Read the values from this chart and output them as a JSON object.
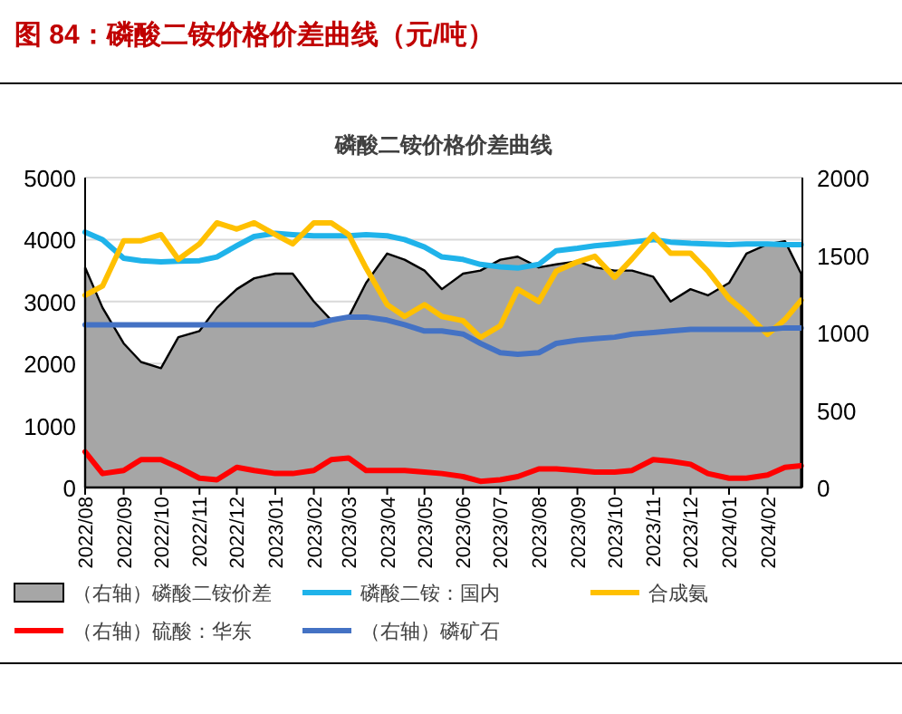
{
  "chart_data": {
    "type": "line",
    "title": "图 84：磷酸二铵价格价差曲线（元/吨）",
    "subtitle": "磷酸二铵价格价差曲线",
    "x": [
      "2022-08-01",
      "2022-08-15",
      "2022-09-01",
      "2022-09-15",
      "2022-10-01",
      "2022-10-15",
      "2022-11-01",
      "2022-11-15",
      "2022-12-01",
      "2022-12-15",
      "2023-01-01",
      "2023-01-15",
      "2023-02-01",
      "2023-02-15",
      "2023-03-01",
      "2023-03-15",
      "2023-04-01",
      "2023-04-15",
      "2023-05-01",
      "2023-05-15",
      "2023-06-01",
      "2023-06-15",
      "2023-07-01",
      "2023-07-15",
      "2023-08-01",
      "2023-08-15",
      "2023-09-01",
      "2023-09-15",
      "2023-10-01",
      "2023-10-15",
      "2023-11-01",
      "2023-11-15",
      "2023-12-01",
      "2023-12-15",
      "2024-01-01",
      "2024-01-15",
      "2024-02-01",
      "2024-02-15",
      "2024-02-28"
    ],
    "series": [
      {
        "name": "（右轴）磷酸二铵价差",
        "type": "area",
        "axis": "y2",
        "color": "#a6a6a6",
        "values": [
          1420,
          1160,
          930,
          810,
          770,
          970,
          1010,
          1160,
          1280,
          1350,
          1380,
          1380,
          1200,
          1080,
          1100,
          1320,
          1510,
          1470,
          1400,
          1280,
          1380,
          1400,
          1470,
          1490,
          1420,
          1440,
          1460,
          1420,
          1400,
          1400,
          1360,
          1200,
          1280,
          1240,
          1320,
          1510,
          1570,
          1590,
          1380
        ]
      },
      {
        "name": "磷酸二铵：国内",
        "color": "#1fb3ea",
        "values": [
          4120,
          4000,
          3700,
          3660,
          3640,
          3650,
          3660,
          3720,
          3900,
          4050,
          4100,
          4080,
          4060,
          4060,
          4060,
          4080,
          4060,
          4000,
          3880,
          3720,
          3680,
          3600,
          3560,
          3540,
          3600,
          3820,
          3860,
          3900,
          3930,
          3960,
          4000,
          3960,
          3940,
          3930,
          3920,
          3930,
          3930,
          3920,
          3920
        ]
      },
      {
        "name": "合成氨",
        "color": "#ffc000",
        "values": [
          3100,
          3250,
          3980,
          3980,
          4080,
          3680,
          3930,
          4270,
          4170,
          4270,
          4080,
          3930,
          4270,
          4270,
          4080,
          3540,
          2950,
          2760,
          2950,
          2760,
          2690,
          2420,
          2610,
          3200,
          3000,
          3490,
          3640,
          3730,
          3390,
          3690,
          4080,
          3780,
          3780,
          3490,
          3050,
          2810,
          2470,
          2710,
          3020
        ]
      },
      {
        "name": "（右轴）硫酸：华东",
        "axis": "y2",
        "color": "#ff0000",
        "values": [
          230,
          90,
          110,
          180,
          180,
          130,
          60,
          50,
          130,
          110,
          90,
          90,
          110,
          180,
          190,
          110,
          110,
          110,
          100,
          90,
          70,
          40,
          50,
          70,
          120,
          120,
          110,
          100,
          100,
          110,
          180,
          170,
          150,
          90,
          60,
          60,
          80,
          130,
          140
        ]
      },
      {
        "name": "（右轴）磷矿石",
        "axis": "y2",
        "color": "#4472c4",
        "values": [
          1050,
          1050,
          1050,
          1050,
          1050,
          1050,
          1050,
          1050,
          1050,
          1050,
          1050,
          1050,
          1050,
          1080,
          1100,
          1100,
          1080,
          1050,
          1010,
          1010,
          990,
          930,
          870,
          860,
          870,
          930,
          950,
          960,
          970,
          990,
          1000,
          1010,
          1020,
          1020,
          1020,
          1020,
          1020,
          1030,
          1030
        ]
      }
    ],
    "xlim": [
      "2022-08-01",
      "2024-02-29"
    ],
    "xticks": [
      {
        "value": "2022-08-01",
        "label": "2022/08"
      },
      {
        "value": "2022-09-01",
        "label": "2022/09"
      },
      {
        "value": "2022-10-01",
        "label": "2022/10"
      },
      {
        "value": "2022-11-01",
        "label": "2022/11"
      },
      {
        "value": "2022-12-01",
        "label": "2022/12"
      },
      {
        "value": "2023-01-01",
        "label": "2023/01"
      },
      {
        "value": "2023-02-01",
        "label": "2023/02"
      },
      {
        "value": "2023-03-01",
        "label": "2023/03"
      },
      {
        "value": "2023-04-01",
        "label": "2023/04"
      },
      {
        "value": "2023-05-01",
        "label": "2023/05"
      },
      {
        "value": "2023-06-01",
        "label": "2023/06"
      },
      {
        "value": "2023-07-01",
        "label": "2023/07"
      },
      {
        "value": "2023-08-01",
        "label": "2023/08"
      },
      {
        "value": "2023-09-01",
        "label": "2023/09"
      },
      {
        "value": "2023-10-01",
        "label": "2023/10"
      },
      {
        "value": "2023-11-01",
        "label": "2023/11"
      },
      {
        "value": "2023-12-01",
        "label": "2023/12"
      },
      {
        "value": "2024-01-01",
        "label": "2024/01"
      },
      {
        "value": "2024-02-01",
        "label": "2024/02"
      }
    ],
    "ylim": [
      0,
      5000
    ],
    "yticks": [
      0,
      1000,
      2000,
      3000,
      4000,
      5000
    ],
    "y2lim": [
      0,
      2000
    ],
    "y2ticks": [
      0,
      500,
      1000,
      1500,
      2000
    ],
    "grid": "y",
    "legend": "bottom"
  }
}
